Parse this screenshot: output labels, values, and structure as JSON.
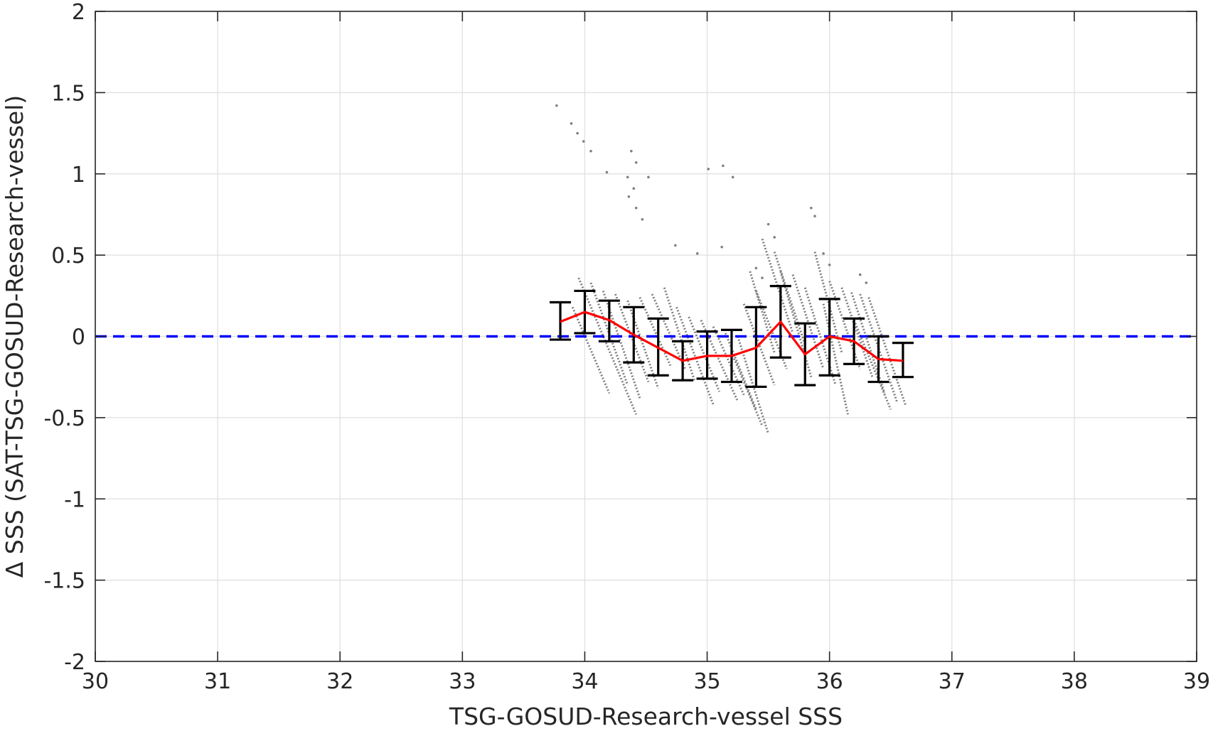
{
  "chart_data": {
    "type": "scatter",
    "title": "",
    "xlabel": "TSG-GOSUD-Research-vessel SSS",
    "ylabel": "Δ SSS (SAT-TSG-GOSUD-Research-vessel)",
    "xlim": [
      30,
      39
    ],
    "ylim": [
      -2,
      2
    ],
    "xticks": [
      30,
      31,
      32,
      33,
      34,
      35,
      36,
      37,
      38,
      39
    ],
    "yticks": [
      -2,
      -1.5,
      -1,
      -0.5,
      0,
      0.5,
      1,
      1.5,
      2
    ],
    "xtick_labels": [
      "30",
      "31",
      "32",
      "33",
      "34",
      "35",
      "36",
      "37",
      "38",
      "39"
    ],
    "ytick_labels": [
      "-2",
      "-1.5",
      "-1",
      "-0.5",
      "0",
      "0.5",
      "1",
      "1.5",
      "2"
    ],
    "grid": true,
    "legend": "none",
    "colors": {
      "scatter": "#808080",
      "mean_line": "#ff0000",
      "error_bars": "#000000",
      "zero_line": "#0000ff",
      "grid": "#dfdfdf",
      "axes": "#262626"
    },
    "reference_line": {
      "y": 0,
      "style": "dashed"
    },
    "scatter_points": [
      {
        "x": 33.77,
        "y": 1.42
      },
      {
        "x": 33.89,
        "y": 1.31
      },
      {
        "x": 33.94,
        "y": 1.25
      },
      {
        "x": 33.99,
        "y": 1.2
      },
      {
        "x": 34.05,
        "y": 1.14
      },
      {
        "x": 34.18,
        "y": 1.01
      },
      {
        "x": 34.38,
        "y": 1.14
      },
      {
        "x": 34.42,
        "y": 1.07
      },
      {
        "x": 34.35,
        "y": 0.98
      },
      {
        "x": 34.4,
        "y": 0.91
      },
      {
        "x": 34.52,
        "y": 0.98
      },
      {
        "x": 34.36,
        "y": 0.86
      },
      {
        "x": 34.42,
        "y": 0.79
      },
      {
        "x": 34.47,
        "y": 0.72
      },
      {
        "x": 35.01,
        "y": 1.03
      },
      {
        "x": 35.13,
        "y": 1.05
      },
      {
        "x": 35.21,
        "y": 0.98
      },
      {
        "x": 35.85,
        "y": 0.79
      },
      {
        "x": 35.88,
        "y": 0.74
      },
      {
        "x": 34.74,
        "y": 0.56
      },
      {
        "x": 34.92,
        "y": 0.51
      },
      {
        "x": 35.12,
        "y": 0.55
      },
      {
        "x": 35.5,
        "y": 0.69
      },
      {
        "x": 35.55,
        "y": 0.61
      },
      {
        "x": 35.95,
        "y": 0.51
      },
      {
        "x": 36.0,
        "y": 0.44
      },
      {
        "x": 36.25,
        "y": 0.38
      },
      {
        "x": 36.3,
        "y": 0.33
      },
      {
        "x": 35.4,
        "y": 0.42
      },
      {
        "x": 35.45,
        "y": 0.36
      }
    ],
    "scatter_streaks": [
      {
        "x": [
          33.95,
          34.42
        ],
        "y": [
          0.36,
          -0.48
        ]
      },
      {
        "x": [
          34.05,
          34.35
        ],
        "y": [
          0.33,
          -0.3
        ]
      },
      {
        "x": [
          34.15,
          34.45
        ],
        "y": [
          0.28,
          -0.38
        ]
      },
      {
        "x": [
          34.25,
          34.52
        ],
        "y": [
          0.26,
          -0.28
        ]
      },
      {
        "x": [
          33.9,
          34.2
        ],
        "y": [
          0.18,
          -0.35
        ]
      },
      {
        "x": [
          34.35,
          34.6
        ],
        "y": [
          0.22,
          -0.32
        ]
      },
      {
        "x": [
          34.45,
          34.7
        ],
        "y": [
          0.24,
          -0.18
        ]
      },
      {
        "x": [
          34.55,
          34.82
        ],
        "y": [
          0.26,
          -0.2
        ]
      },
      {
        "x": [
          34.65,
          34.9
        ],
        "y": [
          0.3,
          -0.28
        ]
      },
      {
        "x": [
          34.75,
          35.05
        ],
        "y": [
          0.18,
          -0.42
        ]
      },
      {
        "x": [
          34.85,
          35.1
        ],
        "y": [
          0.12,
          -0.34
        ]
      },
      {
        "x": [
          34.95,
          35.25
        ],
        "y": [
          0.1,
          -0.4
        ]
      },
      {
        "x": [
          35.05,
          35.3
        ],
        "y": [
          0.06,
          -0.36
        ]
      },
      {
        "x": [
          35.15,
          35.4
        ],
        "y": [
          0.02,
          -0.45
        ]
      },
      {
        "x": [
          35.25,
          35.5
        ],
        "y": [
          0.0,
          -0.6
        ]
      },
      {
        "x": [
          35.2,
          35.45
        ],
        "y": [
          -0.1,
          -0.55
        ]
      },
      {
        "x": [
          35.35,
          35.55
        ],
        "y": [
          0.4,
          -0.1
        ]
      },
      {
        "x": [
          35.45,
          35.7
        ],
        "y": [
          0.6,
          0.02
        ]
      },
      {
        "x": [
          35.55,
          35.8
        ],
        "y": [
          0.52,
          -0.05
        ]
      },
      {
        "x": [
          35.6,
          35.85
        ],
        "y": [
          0.4,
          -0.25
        ]
      },
      {
        "x": [
          35.7,
          35.95
        ],
        "y": [
          0.38,
          -0.2
        ]
      },
      {
        "x": [
          35.8,
          36.05
        ],
        "y": [
          0.3,
          -0.3
        ]
      },
      {
        "x": [
          35.88,
          36.1
        ],
        "y": [
          0.52,
          -0.1
        ]
      },
      {
        "x": [
          35.95,
          36.15
        ],
        "y": [
          0.2,
          -0.48
        ]
      },
      {
        "x": [
          36.0,
          36.25
        ],
        "y": [
          0.34,
          -0.2
        ]
      },
      {
        "x": [
          36.1,
          36.35
        ],
        "y": [
          0.3,
          -0.25
        ]
      },
      {
        "x": [
          36.18,
          36.45
        ],
        "y": [
          0.27,
          -0.35
        ]
      },
      {
        "x": [
          36.25,
          36.55
        ],
        "y": [
          0.26,
          -0.4
        ]
      },
      {
        "x": [
          36.32,
          36.62
        ],
        "y": [
          0.24,
          -0.42
        ]
      },
      {
        "x": [
          36.2,
          36.5
        ],
        "y": [
          0.1,
          -0.45
        ]
      },
      {
        "x": [
          35.3,
          35.55
        ],
        "y": [
          0.2,
          -0.3
        ]
      },
      {
        "x": [
          35.4,
          35.65
        ],
        "y": [
          0.28,
          -0.2
        ]
      }
    ],
    "mean_line": {
      "x": [
        33.8,
        34.0,
        34.2,
        34.4,
        34.6,
        34.8,
        35.0,
        35.2,
        35.4,
        35.6,
        35.8,
        36.0,
        36.2,
        36.4,
        36.6
      ],
      "y": [
        0.09,
        0.15,
        0.1,
        0.01,
        -0.07,
        -0.15,
        -0.12,
        -0.12,
        -0.07,
        0.09,
        -0.11,
        0.0,
        -0.03,
        -0.14,
        -0.15
      ]
    },
    "error_bars": [
      {
        "x": 33.8,
        "low": -0.02,
        "high": 0.21
      },
      {
        "x": 34.0,
        "low": 0.02,
        "high": 0.28
      },
      {
        "x": 34.2,
        "low": -0.03,
        "high": 0.22
      },
      {
        "x": 34.4,
        "low": -0.16,
        "high": 0.18
      },
      {
        "x": 34.6,
        "low": -0.24,
        "high": 0.11
      },
      {
        "x": 34.8,
        "low": -0.27,
        "high": -0.03
      },
      {
        "x": 35.0,
        "low": -0.26,
        "high": 0.03
      },
      {
        "x": 35.2,
        "low": -0.28,
        "high": 0.04
      },
      {
        "x": 35.4,
        "low": -0.31,
        "high": 0.18
      },
      {
        "x": 35.6,
        "low": -0.13,
        "high": 0.31
      },
      {
        "x": 35.8,
        "low": -0.3,
        "high": 0.08
      },
      {
        "x": 36.0,
        "low": -0.24,
        "high": 0.23
      },
      {
        "x": 36.2,
        "low": -0.17,
        "high": 0.11
      },
      {
        "x": 36.4,
        "low": -0.28,
        "high": 0.0
      },
      {
        "x": 36.6,
        "low": -0.25,
        "high": -0.04
      }
    ]
  }
}
